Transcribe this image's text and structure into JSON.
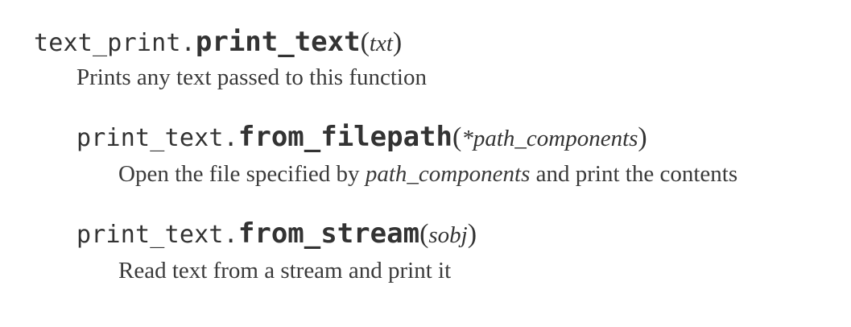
{
  "entries": [
    {
      "module": "text_print.",
      "name": "print_text",
      "open_paren": "(",
      "param": "txt",
      "close_paren": ")",
      "description": "Prints any text passed to this function"
    },
    {
      "module": "print_text.",
      "name": "from_filepath",
      "open_paren": "(",
      "param": "*path_components",
      "close_paren": ")",
      "desc_before": "Open the file specified by ",
      "desc_em": "path_components",
      "desc_after": " and print the contents"
    },
    {
      "module": "print_text.",
      "name": "from_stream",
      "open_paren": "(",
      "param": "sobj",
      "close_paren": ")",
      "description": "Read text from a stream and print it"
    }
  ]
}
